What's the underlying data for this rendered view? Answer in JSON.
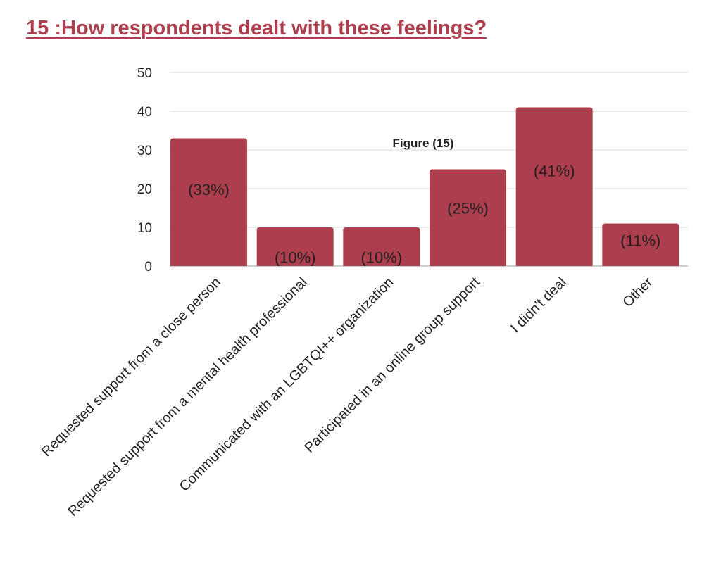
{
  "colors": {
    "bar": "#ad3e4d",
    "title": "#ad3e4d",
    "grid": "#d9d9d9",
    "axis": "#9e9e9e"
  },
  "chart_data": {
    "type": "bar",
    "title": "15 :How respondents dealt with these feelings?",
    "annotation": "Figure (15)",
    "categories": [
      "Requested support from a close person",
      "Requested support from a mental health professional",
      "Communicated with an LGBTQI++ organization",
      "Participated in an online group support",
      "I didn't deal",
      "Other"
    ],
    "values": [
      33,
      10,
      10,
      25,
      41,
      11
    ],
    "data_labels": [
      "(33%)",
      "(10%)",
      "(10%)",
      "(25%)",
      "(41%)",
      "(11%)"
    ],
    "ylim": [
      0,
      50
    ],
    "yticks": [
      0,
      10,
      20,
      30,
      40,
      50
    ],
    "xlabel": "",
    "ylabel": "",
    "grid": true,
    "legend": "none"
  }
}
